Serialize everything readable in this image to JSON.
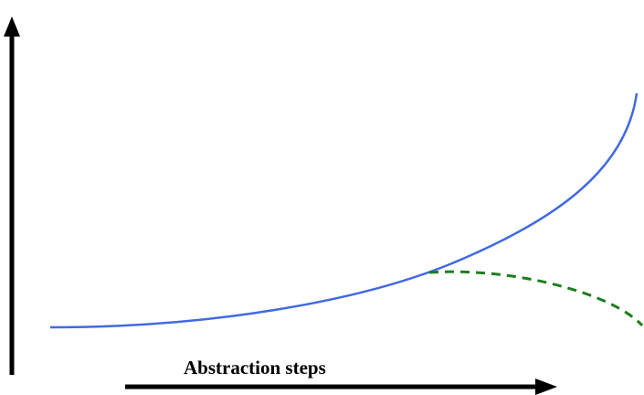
{
  "diagram": {
    "x_axis_label": "Abstraction steps",
    "curves": [
      {
        "style": "solid",
        "color": "#4169e1"
      },
      {
        "style": "dashed",
        "color": "#1e7d1e"
      }
    ],
    "colors": {
      "axis": "#000000",
      "background": "#ffffff"
    }
  }
}
